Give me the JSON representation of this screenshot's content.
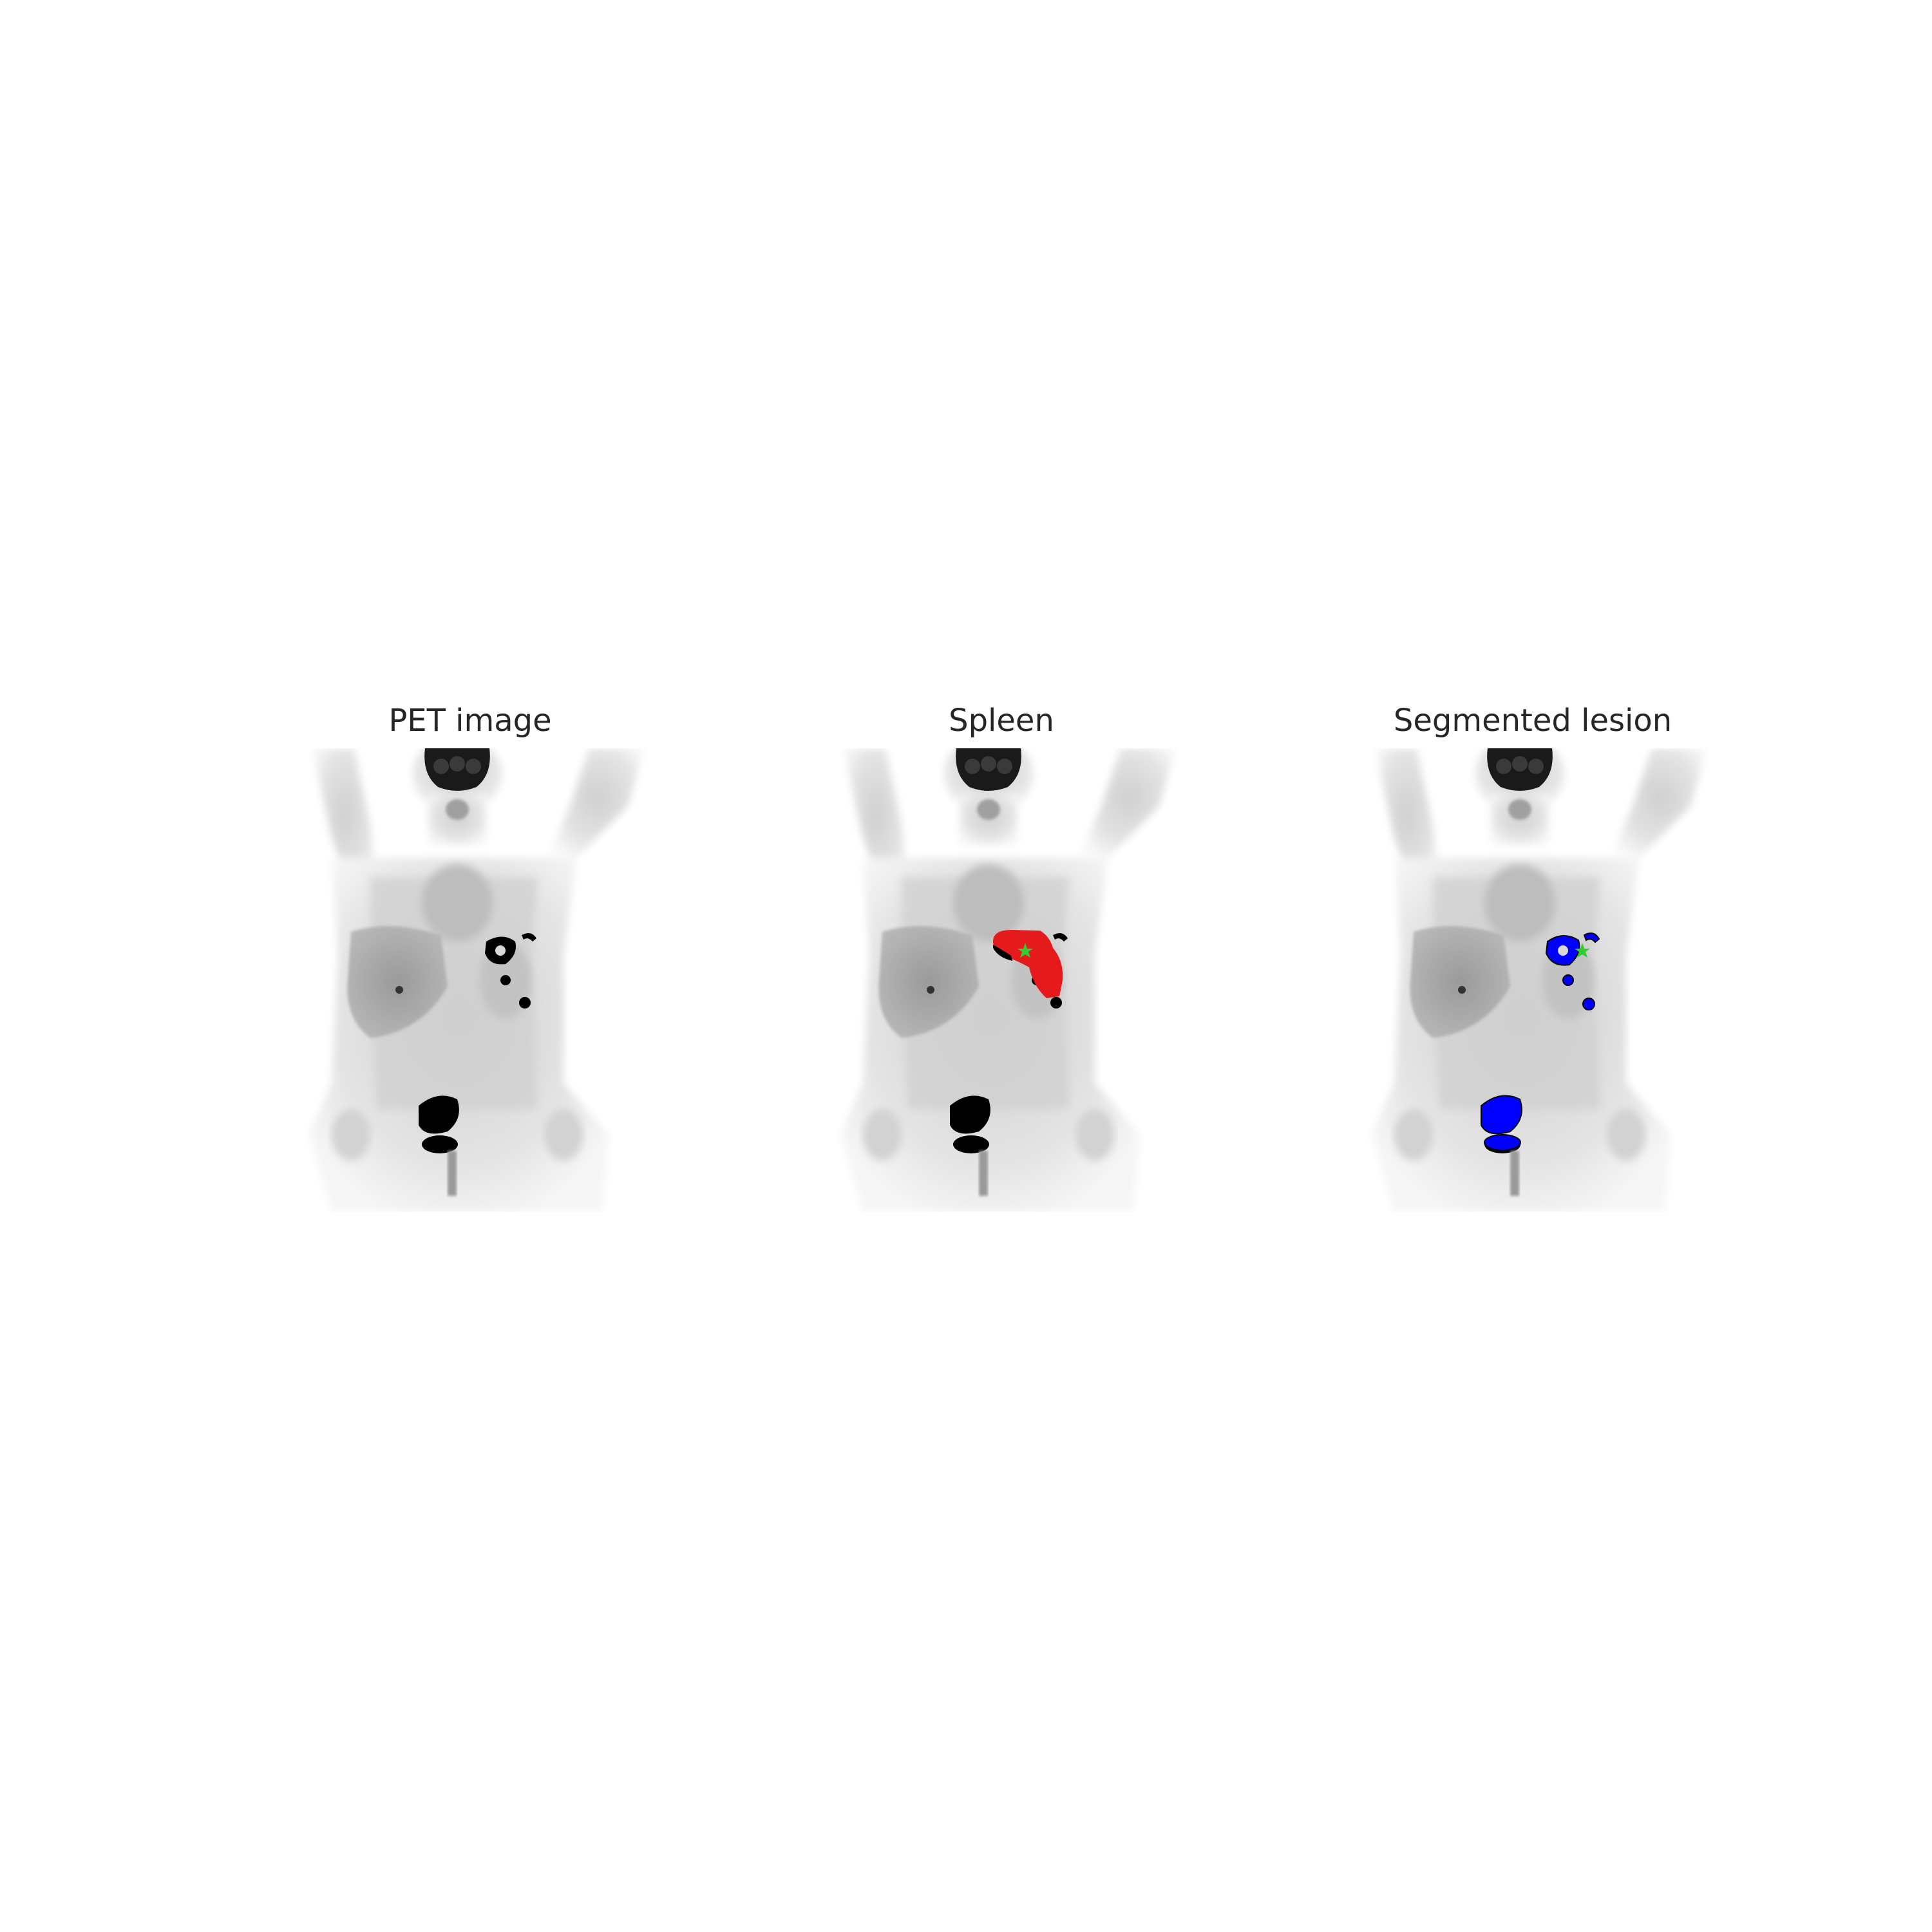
{
  "figure": {
    "panels": [
      {
        "title": "PET image",
        "overlay": "none"
      },
      {
        "title": "Spleen",
        "overlay": "spleen-mask"
      },
      {
        "title": "Segmented lesion",
        "overlay": "lesion-mask"
      }
    ],
    "colors": {
      "background": "#ffffff",
      "title_text": "#262626",
      "body_gray": "#d9d9d9",
      "hot_uptake": "#000000",
      "spleen_mask": "#e41a1c",
      "lesion_mask": "#0000ff",
      "seed_marker": "#33cc33"
    },
    "icons": {
      "seed_marker": "green-star-icon"
    }
  }
}
